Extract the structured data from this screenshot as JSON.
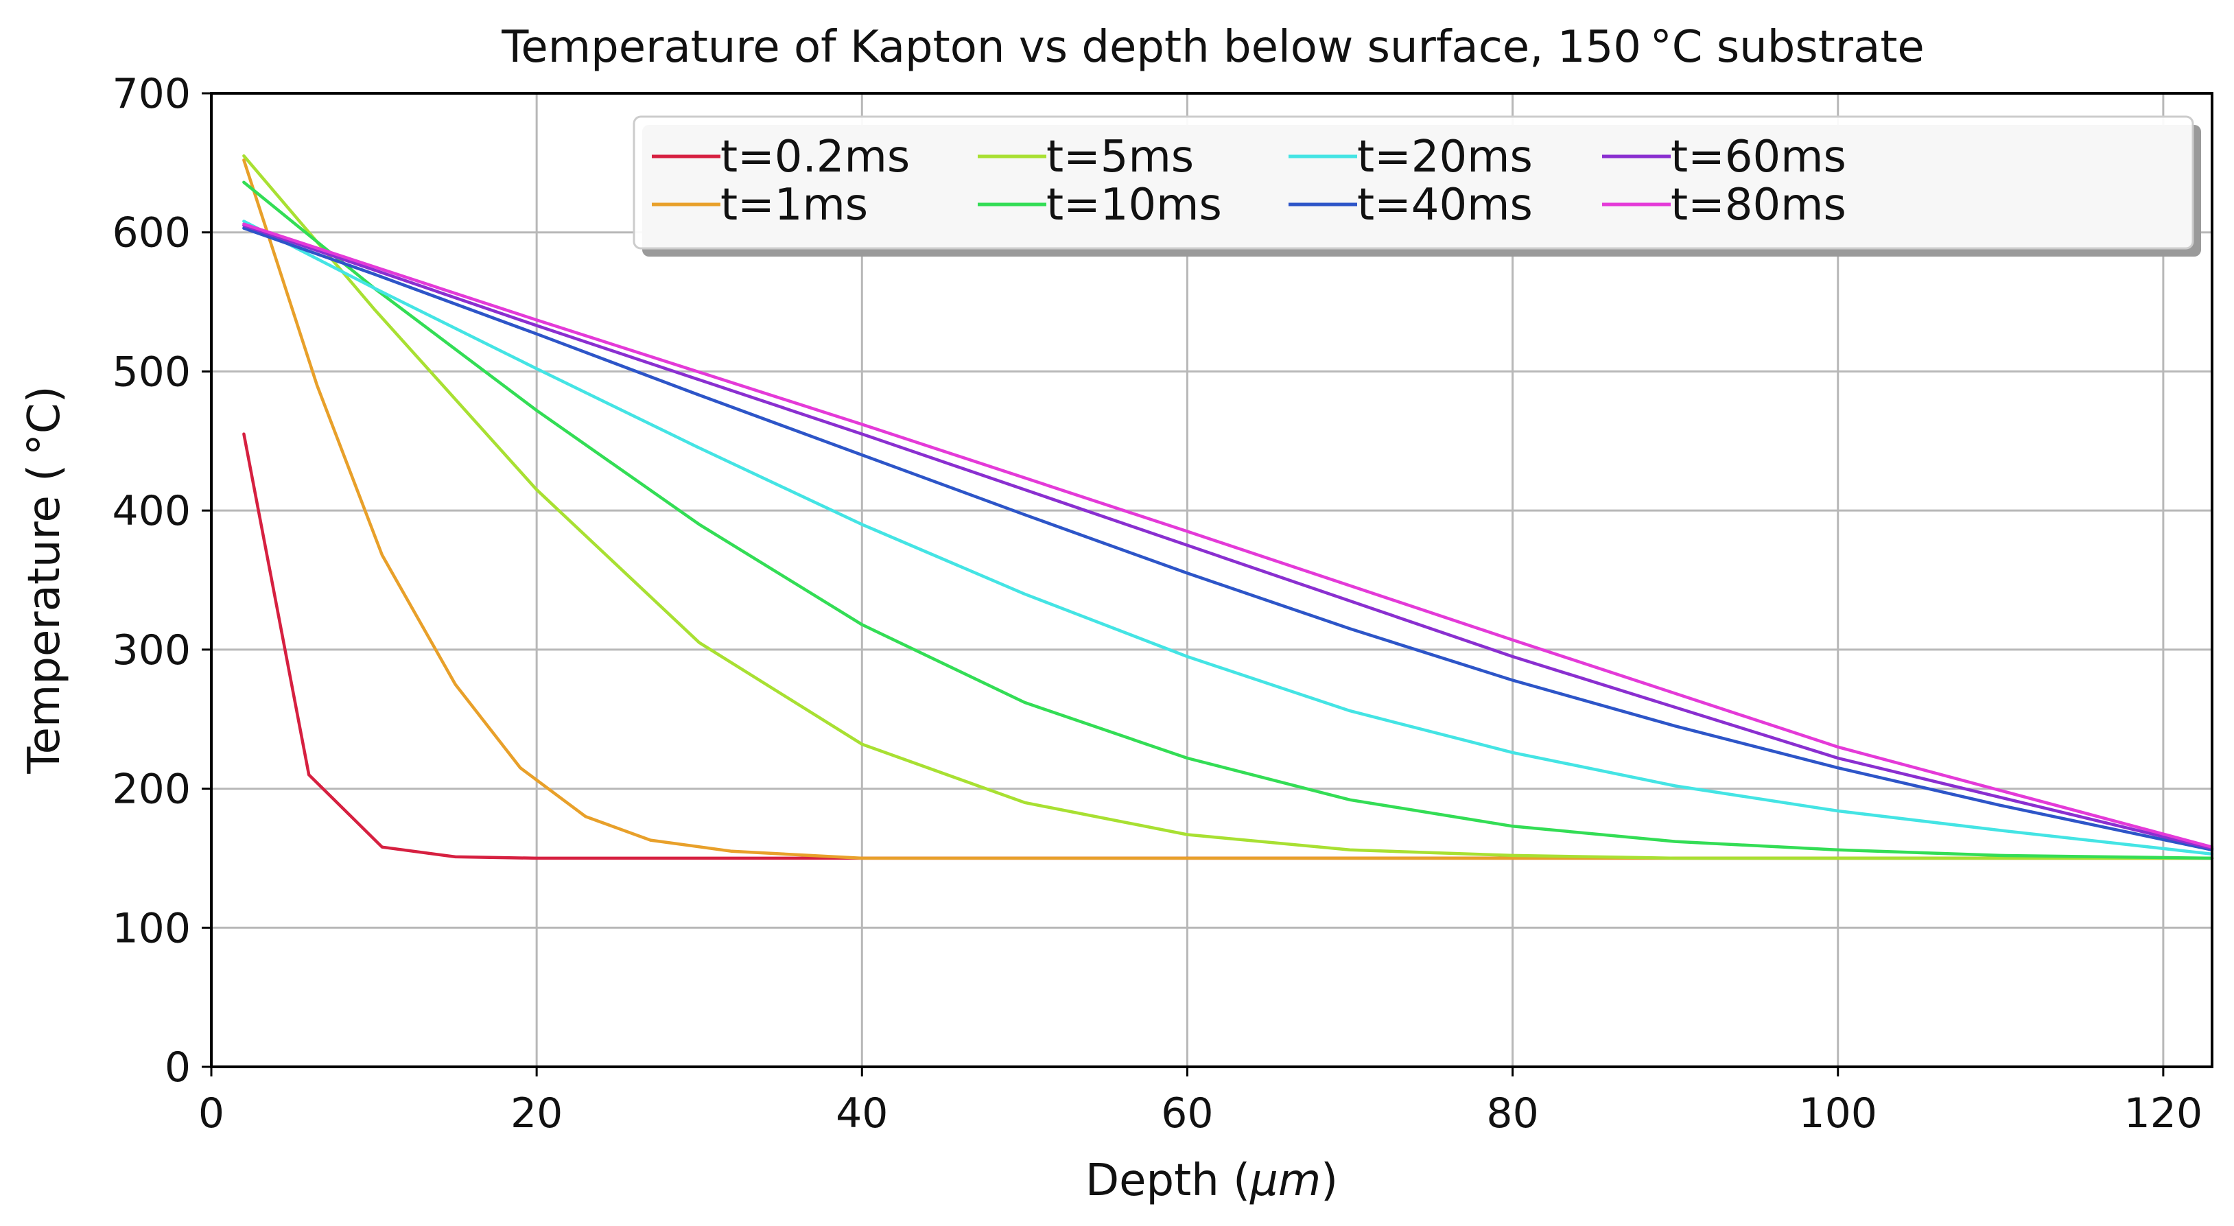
{
  "chart_data": {
    "type": "line",
    "title": "Temperature of Kapton vs depth below surface, 150 °C substrate",
    "xlabel_prefix": "Depth (",
    "xlabel_unit": "μm",
    "xlabel_suffix": ")",
    "ylabel": "Temperature ( °C)",
    "xlim": [
      0,
      123
    ],
    "ylim": [
      0,
      700
    ],
    "xticks": [
      0,
      20,
      40,
      60,
      80,
      100,
      120
    ],
    "yticks": [
      0,
      100,
      200,
      300,
      400,
      500,
      600,
      700
    ],
    "grid": true,
    "legend_position": "top-right",
    "series": [
      {
        "name": "t=0.2ms",
        "color": "#d62040",
        "x": [
          2,
          6,
          10.5,
          15,
          20,
          30,
          40,
          60,
          80,
          100,
          123
        ],
        "y": [
          455,
          210,
          158,
          151,
          150,
          150,
          150,
          150,
          150,
          150,
          150
        ]
      },
      {
        "name": "t=1ms",
        "color": "#e8a02a",
        "x": [
          2,
          6.5,
          10.5,
          15,
          19,
          23,
          27,
          32,
          40,
          60,
          80,
          100,
          123
        ],
        "y": [
          652,
          490,
          368,
          275,
          215,
          180,
          163,
          155,
          150,
          150,
          150,
          150,
          150
        ]
      },
      {
        "name": "t=5ms",
        "color": "#a8e032",
        "x": [
          2,
          10,
          20,
          30,
          40,
          50,
          60,
          70,
          80,
          90,
          100,
          110,
          123
        ],
        "y": [
          655,
          545,
          415,
          305,
          232,
          190,
          167,
          156,
          152,
          150,
          150,
          150,
          150
        ]
      },
      {
        "name": "t=10ms",
        "color": "#33dd55",
        "x": [
          2,
          10,
          20,
          30,
          40,
          50,
          60,
          70,
          80,
          90,
          100,
          110,
          123
        ],
        "y": [
          636,
          560,
          472,
          390,
          318,
          262,
          222,
          192,
          173,
          162,
          156,
          152,
          150
        ]
      },
      {
        "name": "t=20ms",
        "color": "#44e4e4",
        "x": [
          2,
          10,
          20,
          30,
          40,
          50,
          60,
          70,
          80,
          90,
          100,
          110,
          123
        ],
        "y": [
          608,
          560,
          502,
          445,
          390,
          340,
          295,
          256,
          226,
          202,
          184,
          170,
          153
        ]
      },
      {
        "name": "t=40ms",
        "color": "#2d55c8",
        "x": [
          2,
          10,
          20,
          30,
          40,
          50,
          60,
          70,
          80,
          90,
          100,
          110,
          123
        ],
        "y": [
          603,
          570,
          527,
          483,
          440,
          397,
          355,
          315,
          278,
          245,
          215,
          188,
          156
        ]
      },
      {
        "name": "t=60ms",
        "color": "#8a2fd0",
        "x": [
          2,
          20,
          40,
          60,
          80,
          100,
          123
        ],
        "y": [
          605,
          533,
          455,
          375,
          295,
          222,
          157
        ]
      },
      {
        "name": "t=80ms",
        "color": "#e43ad8",
        "x": [
          2,
          20,
          40,
          60,
          80,
          100,
          123
        ],
        "y": [
          606,
          537,
          462,
          385,
          307,
          230,
          158
        ]
      }
    ]
  }
}
